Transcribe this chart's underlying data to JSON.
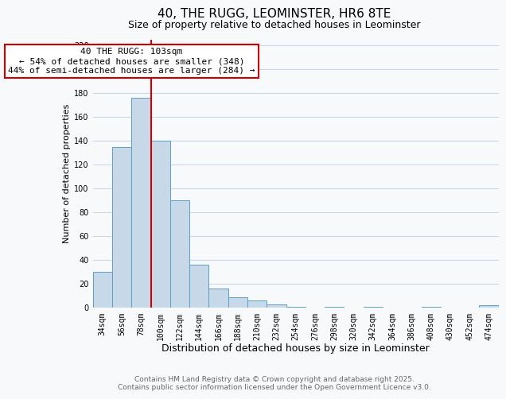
{
  "title": "40, THE RUGG, LEOMINSTER, HR6 8TE",
  "subtitle": "Size of property relative to detached houses in Leominster",
  "xlabel": "Distribution of detached houses by size in Leominster",
  "ylabel": "Number of detached properties",
  "bar_labels": [
    "34sqm",
    "56sqm",
    "78sqm",
    "100sqm",
    "122sqm",
    "144sqm",
    "166sqm",
    "188sqm",
    "210sqm",
    "232sqm",
    "254sqm",
    "276sqm",
    "298sqm",
    "320sqm",
    "342sqm",
    "364sqm",
    "386sqm",
    "408sqm",
    "430sqm",
    "452sqm",
    "474sqm"
  ],
  "bar_values": [
    30,
    135,
    176,
    140,
    90,
    36,
    16,
    9,
    6,
    3,
    1,
    0,
    1,
    0,
    1,
    0,
    0,
    1,
    0,
    0,
    2
  ],
  "bar_color": "#c7d9e8",
  "bar_edge_color": "#5a9fc8",
  "vline_color": "#cc0000",
  "vline_index": 3,
  "annotation_title": "40 THE RUGG: 103sqm",
  "annotation_line1": "← 54% of detached houses are smaller (348)",
  "annotation_line2": "44% of semi-detached houses are larger (284) →",
  "annotation_box_color": "#ffffff",
  "annotation_box_edge_color": "#cc0000",
  "ylim": [
    0,
    225
  ],
  "yticks": [
    0,
    20,
    40,
    60,
    80,
    100,
    120,
    140,
    160,
    180,
    200,
    220
  ],
  "footer_line1": "Contains HM Land Registry data © Crown copyright and database right 2025.",
  "footer_line2": "Contains public sector information licensed under the Open Government Licence v3.0.",
  "background_color": "#f8f9fa",
  "grid_color": "#c8d8e8",
  "title_fontsize": 11,
  "subtitle_fontsize": 9,
  "xlabel_fontsize": 9,
  "ylabel_fontsize": 8,
  "tick_fontsize": 7,
  "annotation_fontsize": 8,
  "footer_fontsize": 6.5
}
